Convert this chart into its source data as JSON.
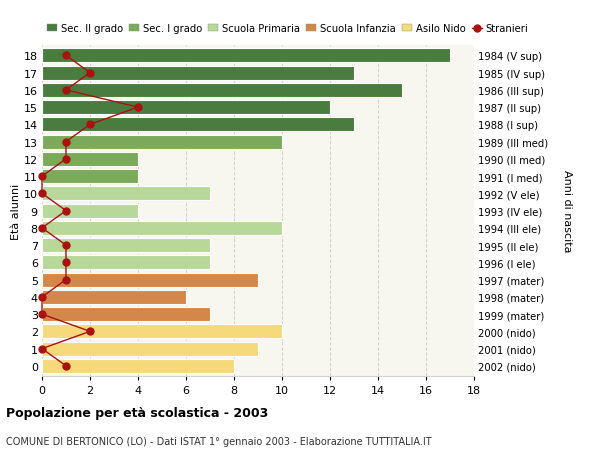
{
  "ages": [
    18,
    17,
    16,
    15,
    14,
    13,
    12,
    11,
    10,
    9,
    8,
    7,
    6,
    5,
    4,
    3,
    2,
    1,
    0
  ],
  "anni_nascita": [
    "1984 (V sup)",
    "1985 (IV sup)",
    "1986 (III sup)",
    "1987 (II sup)",
    "1988 (I sup)",
    "1989 (III med)",
    "1990 (II med)",
    "1991 (I med)",
    "1992 (V ele)",
    "1993 (IV ele)",
    "1994 (III ele)",
    "1995 (II ele)",
    "1996 (I ele)",
    "1997 (mater)",
    "1998 (mater)",
    "1999 (mater)",
    "2000 (nido)",
    "2001 (nido)",
    "2002 (nido)"
  ],
  "bar_values": [
    17,
    13,
    15,
    12,
    13,
    10,
    4,
    4,
    7,
    4,
    10,
    7,
    7,
    9,
    6,
    7,
    10,
    9,
    8
  ],
  "bar_colors": [
    "#4a7c3f",
    "#4a7c3f",
    "#4a7c3f",
    "#4a7c3f",
    "#4a7c3f",
    "#7aaa5a",
    "#7aaa5a",
    "#7aaa5a",
    "#b8d89a",
    "#b8d89a",
    "#b8d89a",
    "#b8d89a",
    "#b8d89a",
    "#d4874a",
    "#d4874a",
    "#d4874a",
    "#f5d97a",
    "#f5d97a",
    "#f5d97a"
  ],
  "stranieri": [
    1,
    2,
    1,
    4,
    2,
    1,
    1,
    0,
    0,
    1,
    0,
    1,
    1,
    1,
    0,
    0,
    2,
    0,
    1
  ],
  "legend_labels": [
    "Sec. II grado",
    "Sec. I grado",
    "Scuola Primaria",
    "Scuola Infanzia",
    "Asilo Nido",
    "Stranieri"
  ],
  "legend_colors": [
    "#4a7c3f",
    "#7aaa5a",
    "#b8d89a",
    "#d4874a",
    "#f5d97a",
    "#cc1111"
  ],
  "ylabel_left": "Età alunni",
  "ylabel_right": "Anni di nascita",
  "title": "Popolazione per età scolastica - 2003",
  "subtitle": "COMUNE DI BERTONICO (LO) - Dati ISTAT 1° gennaio 2003 - Elaborazione TUTTITALIA.IT",
  "xlim": [
    0,
    18
  ],
  "xticks": [
    0,
    2,
    4,
    6,
    8,
    10,
    12,
    14,
    16,
    18
  ],
  "plot_bg": "#f7f7ef",
  "fig_bg": "#ffffff",
  "grid_color": "#d0d0d0",
  "bar_height": 0.82,
  "stranieri_color": "#aa1111"
}
